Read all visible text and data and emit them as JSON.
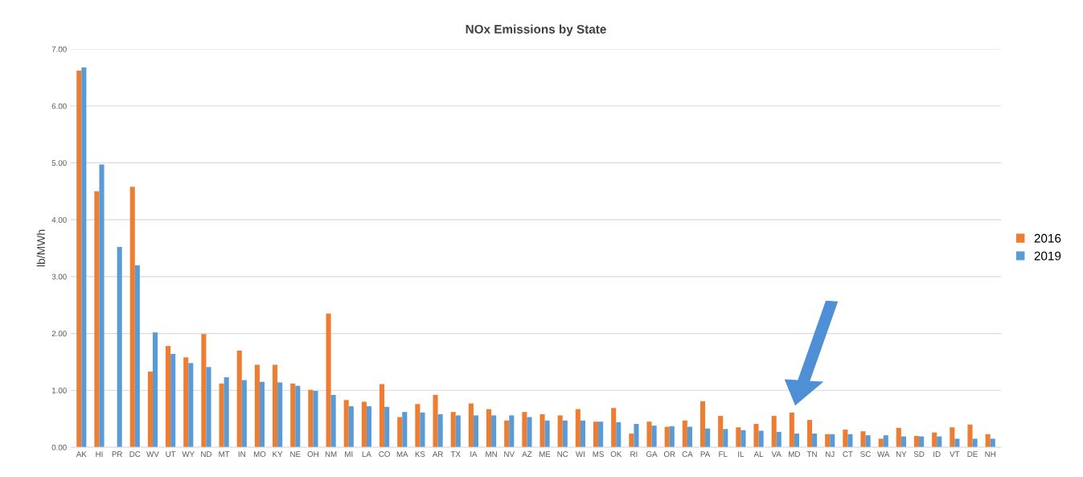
{
  "chart_data": {
    "type": "bar",
    "title": "NOx Emissions by State",
    "ylabel": "lb/MWh",
    "categories": [
      "AK",
      "HI",
      "PR",
      "DC",
      "WV",
      "UT",
      "WY",
      "ND",
      "MT",
      "IN",
      "MO",
      "KY",
      "NE",
      "OH",
      "NM",
      "MI",
      "LA",
      "CO",
      "MA",
      "KS",
      "AR",
      "TX",
      "IA",
      "MN",
      "NV",
      "AZ",
      "ME",
      "NC",
      "WI",
      "MS",
      "OK",
      "RI",
      "GA",
      "OR",
      "CA",
      "PA",
      "FL",
      "IL",
      "AL",
      "VA",
      "MD",
      "TN",
      "NJ",
      "CT",
      "SC",
      "WA",
      "NY",
      "SD",
      "ID",
      "VT",
      "DE",
      "NH"
    ],
    "series": [
      {
        "name": "2016",
        "color": "#ed7d31",
        "values": [
          6.62,
          4.5,
          null,
          4.58,
          1.33,
          1.78,
          1.58,
          1.99,
          1.12,
          1.7,
          1.45,
          1.45,
          1.12,
          1.01,
          2.35,
          0.83,
          0.8,
          1.11,
          0.53,
          0.76,
          0.92,
          0.62,
          0.77,
          0.67,
          0.47,
          0.62,
          0.58,
          0.56,
          0.67,
          0.45,
          0.69,
          0.24,
          0.45,
          0.36,
          0.47,
          0.81,
          0.55,
          0.35,
          0.41,
          0.55,
          0.61,
          0.48,
          0.23,
          0.31,
          0.28,
          0.15,
          0.34,
          0.2,
          0.26,
          0.35,
          0.4,
          0.23
        ]
      },
      {
        "name": "2019",
        "color": "#5b9bd5",
        "values": [
          6.68,
          4.97,
          3.52,
          3.2,
          2.02,
          1.64,
          1.48,
          1.41,
          1.23,
          1.18,
          1.15,
          1.14,
          1.08,
          0.99,
          0.92,
          0.72,
          0.72,
          0.71,
          0.62,
          0.61,
          0.58,
          0.56,
          0.56,
          0.56,
          0.56,
          0.53,
          0.47,
          0.47,
          0.47,
          0.45,
          0.44,
          0.41,
          0.38,
          0.37,
          0.36,
          0.33,
          0.32,
          0.3,
          0.29,
          0.27,
          0.24,
          0.24,
          0.23,
          0.23,
          0.21,
          0.21,
          0.19,
          0.19,
          0.19,
          0.15,
          0.15,
          0.15
        ]
      }
    ],
    "ylim": [
      0,
      7
    ],
    "yticks": [
      {
        "value": 0,
        "label": "0.00"
      },
      {
        "value": 1,
        "label": "1.00"
      },
      {
        "value": 2,
        "label": "2.00"
      },
      {
        "value": 3,
        "label": "3.00"
      },
      {
        "value": 4,
        "label": "4.00"
      },
      {
        "value": 5,
        "label": "5.00"
      },
      {
        "value": 6,
        "label": "6.00"
      },
      {
        "value": 7,
        "label": "7.00"
      }
    ],
    "grid": "y",
    "legend": "right"
  }
}
